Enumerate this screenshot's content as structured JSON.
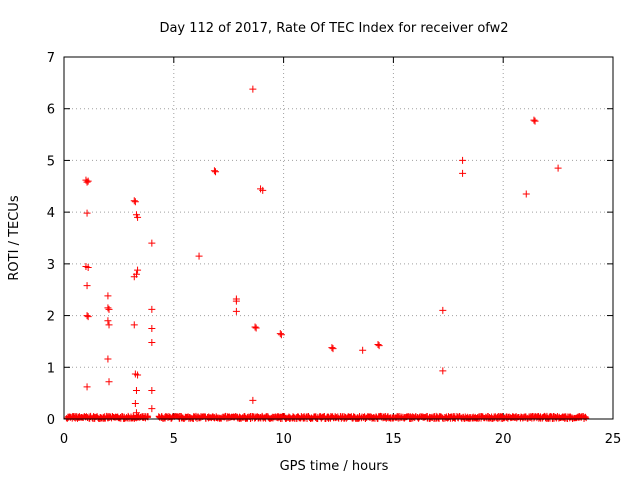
{
  "chart_data": {
    "type": "scatter",
    "title": "Day 112 of 2017, Rate Of TEC Index for receiver ofw2",
    "xlabel": "GPS time / hours",
    "ylabel": "ROTI / TECUs",
    "xlim": [
      0,
      25
    ],
    "ylim": [
      0,
      7
    ],
    "xticks": [
      0,
      5,
      10,
      15,
      20,
      25
    ],
    "yticks": [
      0,
      1,
      2,
      3,
      4,
      5,
      6,
      7
    ],
    "grid": true,
    "marker": "plus",
    "color": "#ff0000",
    "baseline_segments": [
      {
        "x_start": 0.1,
        "x_end": 3.8,
        "y_max": 0.06
      },
      {
        "x_start": 4.3,
        "x_end": 23.8,
        "y_max": 0.06
      }
    ],
    "points": [
      [
        1.0,
        4.62
      ],
      [
        1.05,
        4.58
      ],
      [
        1.1,
        4.6
      ],
      [
        1.05,
        3.98
      ],
      [
        1.0,
        2.95
      ],
      [
        1.1,
        2.93
      ],
      [
        1.05,
        2.58
      ],
      [
        1.05,
        2.0
      ],
      [
        1.1,
        1.98
      ],
      [
        1.05,
        0.62
      ],
      [
        2.0,
        2.38
      ],
      [
        2.05,
        2.12
      ],
      [
        2.0,
        2.15
      ],
      [
        2.0,
        1.9
      ],
      [
        2.05,
        1.82
      ],
      [
        2.0,
        1.16
      ],
      [
        2.05,
        0.72
      ],
      [
        3.2,
        4.22
      ],
      [
        3.25,
        4.2
      ],
      [
        3.3,
        3.95
      ],
      [
        3.35,
        3.9
      ],
      [
        3.2,
        2.75
      ],
      [
        3.3,
        2.8
      ],
      [
        3.35,
        2.88
      ],
      [
        3.2,
        1.82
      ],
      [
        3.25,
        0.87
      ],
      [
        3.35,
        0.85
      ],
      [
        3.3,
        0.55
      ],
      [
        3.25,
        0.3
      ],
      [
        3.3,
        0.12
      ],
      [
        4.0,
        3.4
      ],
      [
        4.0,
        2.12
      ],
      [
        4.0,
        1.75
      ],
      [
        4.0,
        1.48
      ],
      [
        4.0,
        0.55
      ],
      [
        4.0,
        0.2
      ],
      [
        6.15,
        3.15
      ],
      [
        6.85,
        4.8
      ],
      [
        6.9,
        4.78
      ],
      [
        7.85,
        2.32
      ],
      [
        7.85,
        2.28
      ],
      [
        7.85,
        2.08
      ],
      [
        8.6,
        6.38
      ],
      [
        8.6,
        0.36
      ],
      [
        8.7,
        1.78
      ],
      [
        8.75,
        1.76
      ],
      [
        8.95,
        4.45
      ],
      [
        9.05,
        4.42
      ],
      [
        9.85,
        1.65
      ],
      [
        9.9,
        1.63
      ],
      [
        12.2,
        1.38
      ],
      [
        12.25,
        1.36
      ],
      [
        13.6,
        1.33
      ],
      [
        14.3,
        1.44
      ],
      [
        14.35,
        1.42
      ],
      [
        17.25,
        2.1
      ],
      [
        17.25,
        0.93
      ],
      [
        18.15,
        5.0
      ],
      [
        18.15,
        4.75
      ],
      [
        21.05,
        4.35
      ],
      [
        21.4,
        5.78
      ],
      [
        21.45,
        5.76
      ],
      [
        22.5,
        4.85
      ]
    ]
  }
}
